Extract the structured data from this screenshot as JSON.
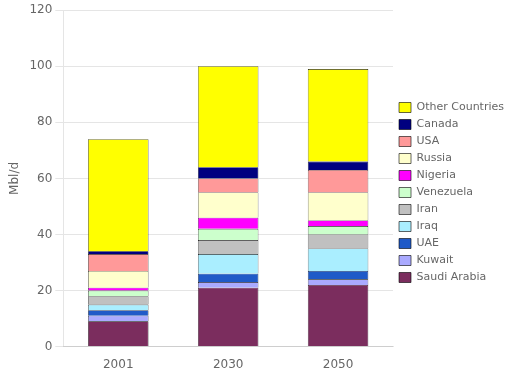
{
  "chart_data": {
    "type": "bar",
    "stacked": true,
    "categories": [
      "2001",
      "2030",
      "2050"
    ],
    "series": [
      {
        "name": "Saudi Arabia",
        "color": "#7B2D5E",
        "values": [
          9,
          21,
          22
        ]
      },
      {
        "name": "Kuwait",
        "color": "#AAAAFF",
        "values": [
          2,
          2,
          2
        ]
      },
      {
        "name": "UAE",
        "color": "#1F5AC8",
        "values": [
          2,
          3,
          3
        ]
      },
      {
        "name": "Iraq",
        "color": "#AAEEFF",
        "values": [
          2,
          7,
          8
        ]
      },
      {
        "name": "Iran",
        "color": "#C0C0C0",
        "values": [
          3,
          5,
          5
        ]
      },
      {
        "name": "Venezuela",
        "color": "#CCFFCC",
        "values": [
          2,
          4,
          3
        ]
      },
      {
        "name": "Nigeria",
        "color": "#FF00FF",
        "values": [
          1,
          4,
          2
        ]
      },
      {
        "name": "Russia",
        "color": "#FFFFCC",
        "values": [
          6,
          9,
          10
        ]
      },
      {
        "name": "USA",
        "color": "#FF9999",
        "values": [
          6,
          5,
          8
        ]
      },
      {
        "name": "Canada",
        "color": "#000080",
        "values": [
          1,
          4,
          3
        ]
      },
      {
        "name": "Other Countries",
        "color": "#FFFF00",
        "values": [
          40,
          36,
          33
        ]
      }
    ],
    "ylabel": "Mbl/d",
    "ylim": [
      0,
      120
    ],
    "yticks": [
      0,
      20,
      40,
      60,
      80,
      100,
      120
    ],
    "grid": true,
    "legend": "right"
  }
}
